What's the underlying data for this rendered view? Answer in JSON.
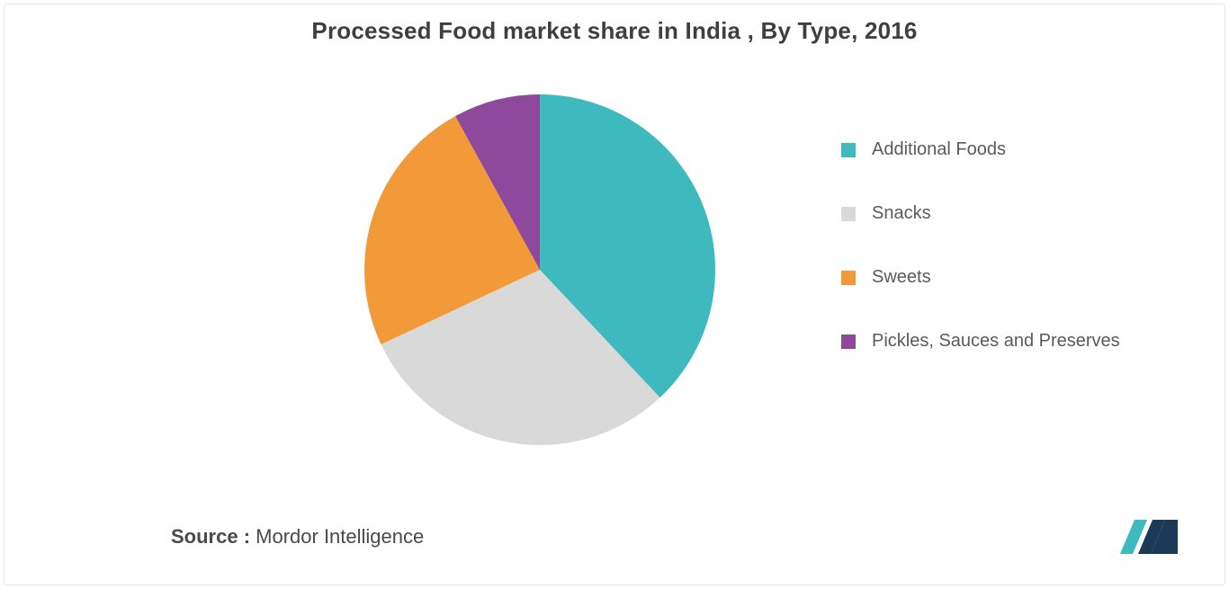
{
  "title": "Processed Food market share in India , By Type, 2016",
  "source": {
    "label": "Source :",
    "text": " Mordor Intelligence"
  },
  "chart": {
    "type": "pie",
    "start_angle_deg": 0,
    "background_color": "#ffffff",
    "slices": [
      {
        "label": "Additional Foods",
        "value": 38,
        "color": "#3eb9bd"
      },
      {
        "label": "Snacks",
        "value": 30,
        "color": "#d9d9d9"
      },
      {
        "label": "Sweets",
        "value": 24,
        "color": "#f29a39"
      },
      {
        "label": "Pickles, Sauces and Preserves",
        "value": 8,
        "color": "#8e489c"
      }
    ],
    "legend_fontsize": 20,
    "legend_text_color": "#5a5a5a",
    "title_fontsize": 26,
    "title_color": "#3f3f3f"
  },
  "logo": {
    "color1": "#3eb9bd",
    "color2": "#1b3a57"
  }
}
